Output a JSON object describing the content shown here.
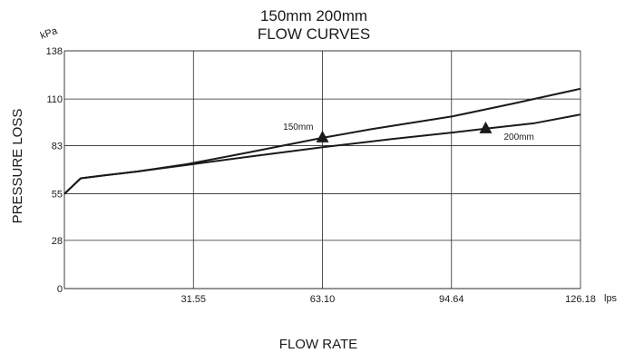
{
  "chart_data": {
    "type": "line",
    "title_line1": "150mm 200mm",
    "title_line2": "FLOW CURVES",
    "xlabel": "FLOW RATE",
    "ylabel": "PRESSURE LOSS",
    "x_unit": "lps",
    "y_unit": "kPa",
    "xlim": [
      0,
      126.18
    ],
    "ylim": [
      0,
      138
    ],
    "x_ticks": [
      31.55,
      63.1,
      94.64,
      126.18
    ],
    "x_tick_labels": [
      "31.55",
      "63.10",
      "94.64",
      "126.18"
    ],
    "y_ticks": [
      0,
      28,
      55,
      83,
      110,
      138
    ],
    "y_tick_labels": [
      "0",
      "28",
      "55",
      "83",
      "110",
      "138"
    ],
    "grid": true,
    "series": [
      {
        "name": "150mm",
        "x": [
          0,
          4,
          10,
          18,
          30,
          45,
          63.1,
          75,
          95,
          110,
          126.18
        ],
        "y": [
          55,
          64,
          65.8,
          68,
          72.2,
          79,
          87.5,
          92.5,
          100,
          107.5,
          116
        ],
        "marker_x": 63.1,
        "marker_y": 87.5
      },
      {
        "name": "200mm",
        "x": [
          0,
          4,
          10,
          18,
          30,
          45,
          63.1,
          80,
          95,
          103,
          115,
          126.18
        ],
        "y": [
          55,
          64,
          65.8,
          68,
          71.8,
          76.5,
          82,
          86.8,
          90.6,
          92.8,
          96,
          101
        ]
      }
    ],
    "markers": [
      {
        "series": "150mm",
        "x": 63.1,
        "y": 87.5,
        "shape": "triangle"
      },
      {
        "series": "200mm",
        "x": 103,
        "y": 92.8,
        "shape": "triangle"
      }
    ]
  }
}
